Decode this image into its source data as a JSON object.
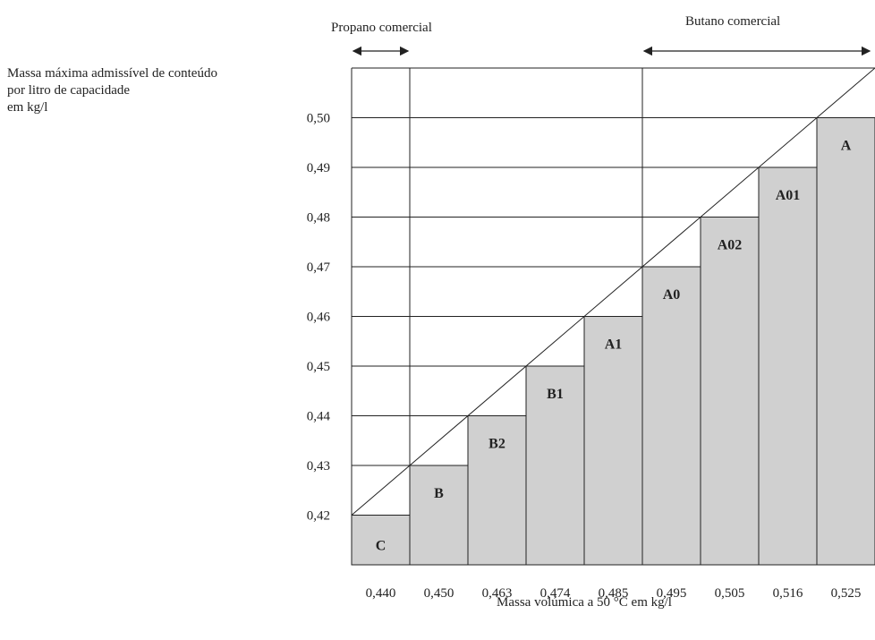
{
  "chart_data": {
    "type": "bar",
    "title": "",
    "ylabel_lines": [
      "Massa máxima admissível de conteúdo",
      "por litro de capacidade",
      "em kg/l"
    ],
    "xlabel": "Massa volúmica a 50 °C em kg/l",
    "ylim": [
      0.41,
      0.51
    ],
    "yticks": [
      "0,42",
      "0,43",
      "0,44",
      "0,45",
      "0,46",
      "0,47",
      "0,48",
      "0,49",
      "0,50"
    ],
    "ytick_values": [
      0.42,
      0.43,
      0.44,
      0.45,
      0.46,
      0.47,
      0.48,
      0.49,
      0.5
    ],
    "x_boundaries": [
      0.44,
      0.45,
      0.463,
      0.474,
      0.485,
      0.495,
      0.505,
      0.516,
      0.525
    ],
    "xtick_labels": [
      "0,440",
      "0,450",
      "0,463",
      "0,474",
      "0,485",
      "0,495",
      "0,505",
      "0,516",
      "0,525"
    ],
    "categories": [
      "C",
      "B",
      "B2",
      "B1",
      "A1",
      "A0",
      "A02",
      "A01",
      "A"
    ],
    "values": [
      0.42,
      0.43,
      0.44,
      0.45,
      0.46,
      0.47,
      0.48,
      0.49,
      0.5
    ],
    "bar_color": "#d0d0d0",
    "grid": true,
    "ranges": [
      {
        "label": "Propano comercial",
        "from_x": 0.44,
        "to_x": 0.45
      },
      {
        "label": "Butano comercial",
        "from_x": 0.495,
        "to_x": 0.525
      }
    ]
  }
}
